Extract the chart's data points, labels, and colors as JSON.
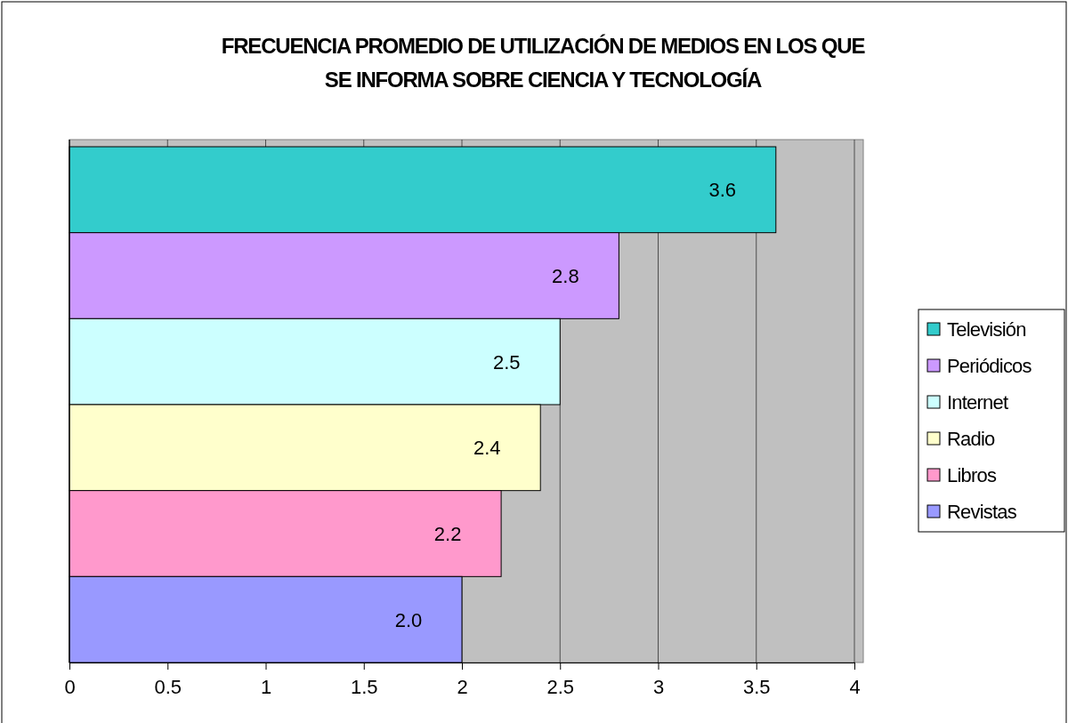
{
  "chart_data": {
    "type": "bar",
    "orientation": "horizontal",
    "title": "FRECUENCIA PROMEDIO DE UTILIZACIÓN DE MEDIOS EN LOS QUE SE INFORMA SOBRE CIENCIA Y TECNOLOGÍA",
    "categories": [
      null,
      null,
      null,
      null,
      null,
      null
    ],
    "series": [
      {
        "name": "Televisión",
        "color": "#33cccc",
        "values": [
          3.6,
          null,
          null,
          null,
          null,
          null
        ]
      },
      {
        "name": "Periódicos",
        "color": "#cc99ff",
        "values": [
          null,
          2.8,
          null,
          null,
          null,
          null
        ]
      },
      {
        "name": "Internet",
        "color": "#ccffff",
        "values": [
          null,
          null,
          2.5,
          null,
          null,
          null
        ]
      },
      {
        "name": "Radio",
        "color": "#ffffcc",
        "values": [
          null,
          null,
          null,
          2.4,
          null,
          null
        ]
      },
      {
        "name": "Libros",
        "color": "#ff99cc",
        "values": [
          null,
          null,
          null,
          null,
          2.2,
          null
        ]
      },
      {
        "name": "Revistas",
        "color": "#9999ff",
        "values": [
          null,
          null,
          null,
          null,
          null,
          2.0
        ]
      }
    ],
    "value_labels": [
      "3.6",
      "2.8",
      "2.5",
      "2.4",
      "2.2",
      "2.0"
    ],
    "xlim": [
      0,
      4
    ],
    "xticks": [
      0,
      0.5,
      1,
      1.5,
      2,
      2.5,
      3,
      3.5,
      4
    ],
    "grid": "x",
    "legend": "right"
  }
}
